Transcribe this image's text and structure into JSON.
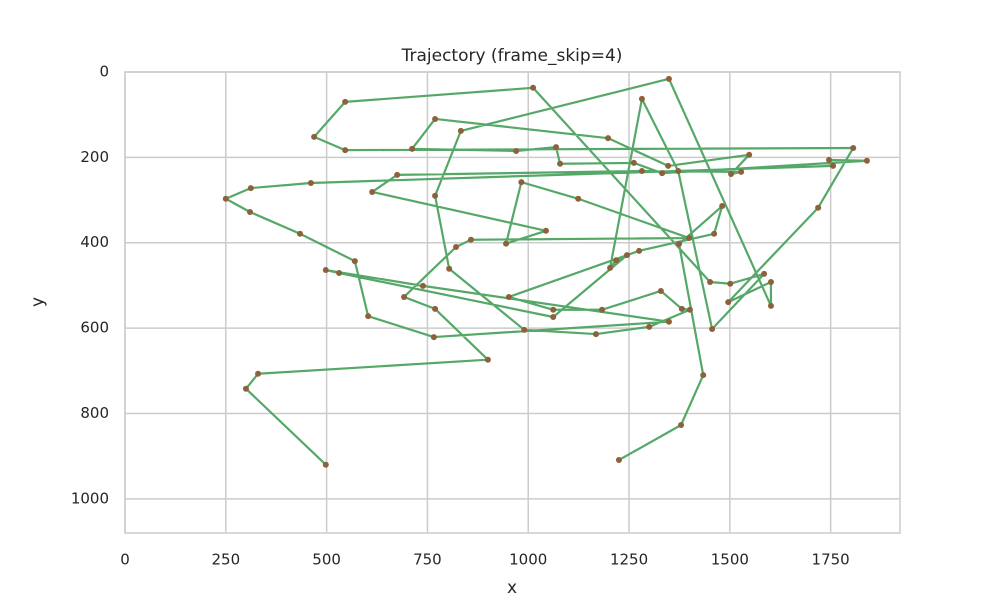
{
  "chart_data": {
    "type": "line",
    "title": "Trajectory (frame_skip=4)",
    "x_label": "x",
    "y_label": "y",
    "line_color": "#55a868",
    "marker_color": "#8c613c",
    "grid": true,
    "xlim": [
      0,
      1922
    ],
    "ylim": [
      1080,
      0
    ],
    "xticks": [
      0,
      250,
      500,
      750,
      1000,
      1250,
      1500,
      1750
    ],
    "yticks": [
      0,
      200,
      400,
      600,
      800,
      1000
    ],
    "x": [
      1225,
      1379,
      1434,
      1374,
      1481,
      1461,
      1275,
      952,
      1062,
      1183,
      1329,
      1381,
      1401,
      1300,
      1168,
      990,
      804,
      769,
      833,
      1349,
      1602,
      1602,
      1496,
      1719,
      1806,
      546,
      469,
      546,
      1012,
      1451,
      1501,
      1585,
      1456,
      1372,
      1282,
      1203,
      1218,
      1245,
      1062,
      531,
      498,
      739,
      1349,
      766,
      603,
      570,
      434,
      310,
      250,
      312,
      461,
      1756,
      1746,
      1840,
      1332,
      1262,
      1079,
      1069,
      970,
      712,
      769,
      1198,
      1347,
      1548,
      1503,
      1528,
      1282,
      675,
      613,
      1044,
      945,
      983,
      1124,
      1399,
      858,
      821,
      692,
      769,
      900,
      330,
      300,
      498
    ],
    "values": [
      909,
      827,
      710,
      403,
      314,
      379,
      419,
      527,
      557,
      557,
      513,
      555,
      557,
      597,
      614,
      604,
      461,
      290,
      138,
      16,
      548,
      492,
      539,
      318,
      178,
      183,
      152,
      70,
      37,
      492,
      496,
      473,
      602,
      232,
      63,
      459,
      441,
      429,
      574,
      471,
      464,
      501,
      585,
      621,
      572,
      443,
      379,
      328,
      297,
      272,
      260,
      220,
      206,
      208,
      237,
      213,
      215,
      176,
      185,
      180,
      110,
      155,
      220,
      194,
      239,
      234,
      232,
      241,
      281,
      372,
      402,
      258,
      297,
      389,
      393,
      410,
      527,
      555,
      674,
      707,
      742,
      920
    ]
  }
}
